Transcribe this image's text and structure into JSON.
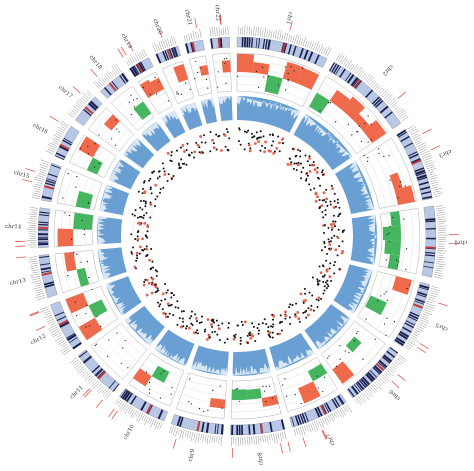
{
  "figure": {
    "colors": {
      "ideogram_dark": "#1a1f4e",
      "ideogram_light": "#b9c7e6",
      "ideogram_centromere": "#c23c3c",
      "cnv_gain": "#ee6a4a",
      "cnv_loss": "#46b560",
      "expression_fill": "#6a9fd3",
      "expression_line": "#ffffff",
      "sv_mark": "#e8624e",
      "dot_black": "#111111",
      "dot_red": "#e8624e",
      "track_line": "#9a9a9a",
      "gene_label": "#7a7a7a",
      "fusion_label": "#e85a4e"
    },
    "chromosomes": [
      {
        "name": "chr1",
        "label": "chr1"
      },
      {
        "name": "chr2",
        "label": "chr2"
      },
      {
        "name": "chr3",
        "label": "chr3"
      },
      {
        "name": "chr4",
        "label": "chr4"
      },
      {
        "name": "chr5",
        "label": "chr5"
      },
      {
        "name": "chr6",
        "label": "chr6"
      },
      {
        "name": "chr7",
        "label": "chr7"
      },
      {
        "name": "chr8",
        "label": "chr8"
      },
      {
        "name": "chr9",
        "label": "chr9"
      },
      {
        "name": "chr10",
        "label": "chr10"
      },
      {
        "name": "chr11",
        "label": "chr11"
      },
      {
        "name": "chr12",
        "label": "chr12"
      },
      {
        "name": "chr13",
        "label": "chr13"
      },
      {
        "name": "chr14",
        "label": "chr14"
      },
      {
        "name": "chr15",
        "label": "chr15"
      },
      {
        "name": "chr16",
        "label": "chr16"
      },
      {
        "name": "chr17",
        "label": "chr17"
      },
      {
        "name": "chr18",
        "label": "chr18"
      },
      {
        "name": "chr19",
        "label": "chr19"
      },
      {
        "name": "chr20",
        "label": "chr20"
      },
      {
        "name": "chr21",
        "label": "chr21"
      },
      {
        "name": "chr22",
        "label": "chr22"
      }
    ]
  }
}
